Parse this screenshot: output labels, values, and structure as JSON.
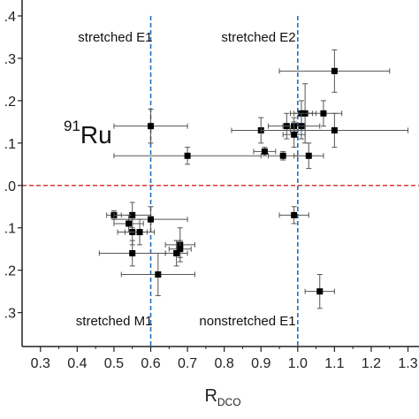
{
  "chart_data": {
    "type": "scatter",
    "xlabel": "R",
    "xlabel_sub": "DCO",
    "nuclide_mass": "91",
    "nuclide_symbol": "Ru",
    "xlim": [
      0.25,
      1.33
    ],
    "ylim": [
      -0.38,
      0.4
    ],
    "x_ticks": [
      0.3,
      0.4,
      0.5,
      0.6,
      0.7,
      0.8,
      0.9,
      1.0,
      1.1,
      1.2,
      1.3
    ],
    "x_tick_labels": [
      "0.3",
      "0.4",
      "0.5",
      "0.6",
      "0.7",
      "0.8",
      "0.9",
      "1.0",
      "1.1",
      "1.2",
      "1.3"
    ],
    "y_ticks": [
      0.4,
      0.3,
      0.2,
      0.1,
      0.0,
      -0.1,
      -0.2,
      -0.3
    ],
    "y_tick_labels": [
      ".4",
      ".3",
      ".2",
      ".1",
      ".0",
      ".1",
      ".2",
      ".3"
    ],
    "reference_lines": {
      "vertical": [
        0.6,
        1.0
      ],
      "horizontal": [
        0.0
      ],
      "vertical_color": "#1f6fbf",
      "horizontal_color": "#d62728"
    },
    "region_labels": [
      {
        "text": "stretched E1",
        "x": 0.6,
        "y": 0.35
      },
      {
        "text": "stretched E2",
        "x": 0.99,
        "y": 0.35
      },
      {
        "text": "stretched M1",
        "x": 0.6,
        "y": -0.32
      },
      {
        "text": "nonstretched E1",
        "x": 0.99,
        "y": -0.32
      }
    ],
    "points": [
      {
        "x": 0.6,
        "y": 0.14,
        "xerr": 0.1,
        "yerr": 0.04
      },
      {
        "x": 0.7,
        "y": 0.07,
        "xerr": 0.2,
        "yerr": 0.02
      },
      {
        "x": 1.1,
        "y": 0.27,
        "xerr": 0.15,
        "yerr": 0.05
      },
      {
        "x": 1.07,
        "y": 0.17,
        "xerr": 0.05,
        "yerr": 0.03
      },
      {
        "x": 1.02,
        "y": 0.17,
        "xerr": 0.03,
        "yerr": 0.07
      },
      {
        "x": 1.01,
        "y": 0.17,
        "xerr": 0.03,
        "yerr": 0.03
      },
      {
        "x": 0.97,
        "y": 0.14,
        "xerr": 0.05,
        "yerr": 0.03
      },
      {
        "x": 1.01,
        "y": 0.14,
        "xerr": 0.05,
        "yerr": 0.03
      },
      {
        "x": 0.99,
        "y": 0.14,
        "xerr": 0.03,
        "yerr": 0.02
      },
      {
        "x": 0.9,
        "y": 0.13,
        "xerr": 0.08,
        "yerr": 0.03
      },
      {
        "x": 1.1,
        "y": 0.13,
        "xerr": 0.2,
        "yerr": 0.04
      },
      {
        "x": 0.99,
        "y": 0.12,
        "xerr": 0.03,
        "yerr": 0.03
      },
      {
        "x": 1.03,
        "y": 0.07,
        "xerr": 0.04,
        "yerr": 0.03
      },
      {
        "x": 0.91,
        "y": 0.08,
        "xerr": 0.03,
        "yerr": 0.01
      },
      {
        "x": 0.96,
        "y": 0.07,
        "xerr": 0.04,
        "yerr": 0.01
      },
      {
        "x": 0.99,
        "y": -0.07,
        "xerr": 0.04,
        "yerr": 0.02
      },
      {
        "x": 0.5,
        "y": -0.07,
        "xerr": 0.02,
        "yerr": 0.01
      },
      {
        "x": 0.55,
        "y": -0.07,
        "xerr": 0.05,
        "yerr": 0.03
      },
      {
        "x": 0.54,
        "y": -0.09,
        "xerr": 0.04,
        "yerr": 0.02
      },
      {
        "x": 0.6,
        "y": -0.08,
        "xerr": 0.1,
        "yerr": 0.03
      },
      {
        "x": 0.55,
        "y": -0.11,
        "xerr": 0.04,
        "yerr": 0.03
      },
      {
        "x": 0.57,
        "y": -0.11,
        "xerr": 0.04,
        "yerr": 0.03
      },
      {
        "x": 0.68,
        "y": -0.14,
        "xerr": 0.04,
        "yerr": 0.04
      },
      {
        "x": 0.68,
        "y": -0.15,
        "xerr": 0.03,
        "yerr": 0.02
      },
      {
        "x": 0.67,
        "y": -0.16,
        "xerr": 0.03,
        "yerr": 0.03
      },
      {
        "x": 0.55,
        "y": -0.16,
        "xerr": 0.09,
        "yerr": 0.03
      },
      {
        "x": 0.62,
        "y": -0.21,
        "xerr": 0.1,
        "yerr": 0.05
      },
      {
        "x": 1.06,
        "y": -0.25,
        "xerr": 0.04,
        "yerr": 0.04
      }
    ]
  }
}
